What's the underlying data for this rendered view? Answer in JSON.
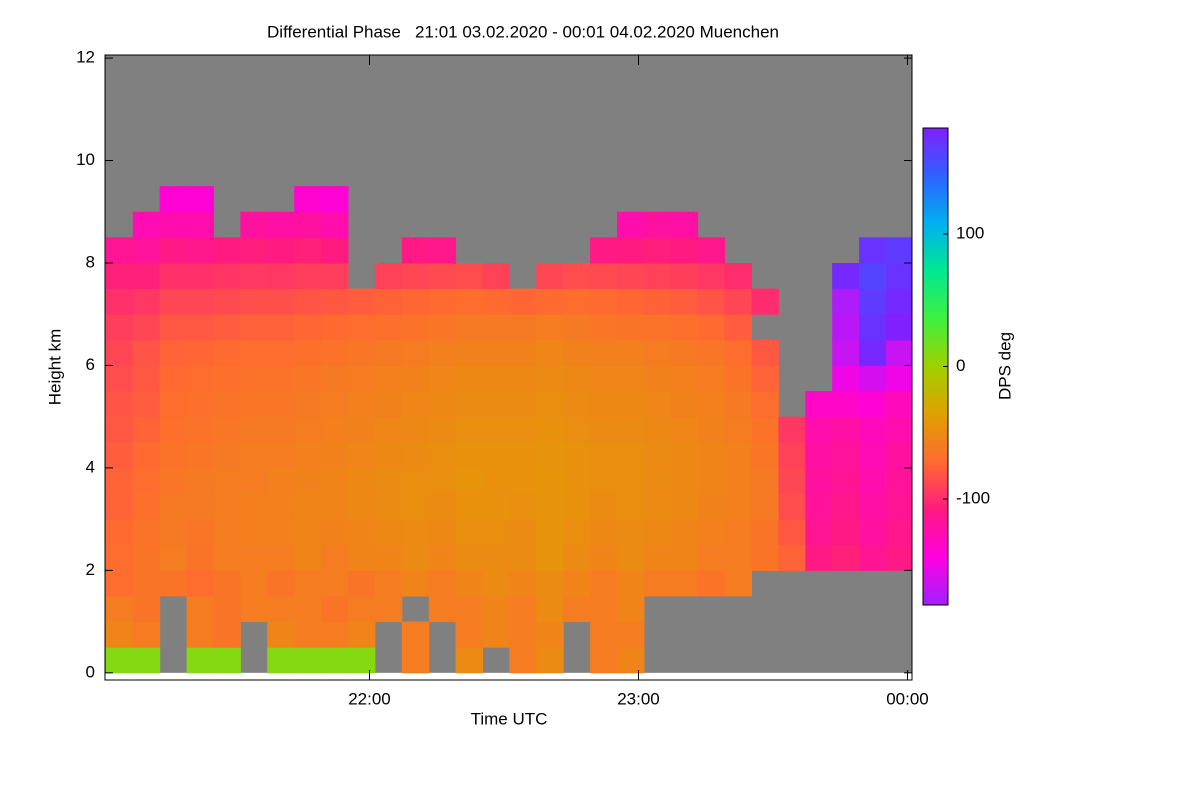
{
  "chart_data": {
    "type": "heatmap",
    "title": "Differential Phase   21:01 03.02.2020 - 00:01 04.02.2020 Muenchen",
    "xlabel": "Time UTC",
    "ylabel": "Height km",
    "colorbar_label": "DPS deg",
    "xlim": [
      21.0167,
      24.0167
    ],
    "xticks": [
      {
        "value": 22,
        "label": "22:00"
      },
      {
        "value": 23,
        "label": "23:00"
      },
      {
        "value": 24,
        "label": "00:00"
      }
    ],
    "ylim": [
      -0.14,
      12.06
    ],
    "yticks": [
      0,
      2,
      4,
      6,
      8,
      10,
      12
    ],
    "zlim": [
      -180,
      180
    ],
    "zticks": [
      -100,
      0,
      100
    ],
    "nodata_color": "#808080",
    "colormap": [
      "#a020ff",
      "#ff00e0",
      "#ff1a80",
      "#ff6a30",
      "#e0a000",
      "#a0d000",
      "#40f040",
      "#00e890",
      "#00b0f0",
      "#3060ff",
      "#8020ff"
    ],
    "x": [
      21.07,
      21.17,
      21.27,
      21.37,
      21.47,
      21.57,
      21.67,
      21.77,
      21.87,
      21.97,
      22.07,
      22.17,
      22.27,
      22.37,
      22.47,
      22.57,
      22.67,
      22.77,
      22.87,
      22.97,
      23.07,
      23.17,
      23.27,
      23.37,
      23.47,
      23.57,
      23.67,
      23.77,
      23.87,
      23.97
    ],
    "y": [
      0.25,
      0.75,
      1.25,
      1.75,
      2.25,
      2.75,
      3.25,
      3.75,
      4.25,
      4.75,
      5.25,
      5.75,
      6.25,
      6.75,
      7.25,
      7.75,
      8.25,
      8.75,
      9.25
    ],
    "z": [
      [
        10,
        10,
        null,
        10,
        10,
        null,
        10,
        10,
        10,
        10,
        null,
        -60,
        null,
        -50,
        null,
        -60,
        -50,
        null,
        -60,
        -55,
        null,
        null,
        null,
        null,
        null,
        null,
        null,
        null,
        null,
        null
      ],
      [
        -55,
        -60,
        null,
        -60,
        -65,
        null,
        -55,
        -60,
        -60,
        -55,
        null,
        -60,
        null,
        -60,
        -55,
        -60,
        -55,
        null,
        -60,
        -60,
        null,
        null,
        null,
        null,
        null,
        null,
        null,
        null,
        null,
        null
      ],
      [
        -60,
        -65,
        null,
        -60,
        -65,
        -60,
        -60,
        -60,
        -65,
        -60,
        -60,
        null,
        -60,
        -60,
        -55,
        -60,
        -50,
        -60,
        -60,
        -55,
        null,
        null,
        null,
        null,
        null,
        null,
        null,
        null,
        null,
        null
      ],
      [
        -70,
        -65,
        -65,
        -70,
        -65,
        -60,
        -65,
        -60,
        -60,
        -65,
        -60,
        -55,
        -60,
        -55,
        -50,
        -55,
        -50,
        -55,
        -60,
        -55,
        -60,
        -60,
        -65,
        -60,
        null,
        null,
        null,
        null,
        null,
        null
      ],
      [
        -70,
        -65,
        -60,
        -65,
        -60,
        -60,
        -60,
        -55,
        -60,
        -55,
        -55,
        -50,
        -55,
        -50,
        -50,
        -50,
        -45,
        -50,
        -55,
        -50,
        -55,
        -55,
        -60,
        -60,
        -65,
        -75,
        -110,
        -105,
        -115,
        -110
      ],
      [
        -72,
        -66,
        -62,
        -64,
        -60,
        -58,
        -58,
        -55,
        -56,
        -55,
        -52,
        -50,
        -52,
        -48,
        -48,
        -50,
        -45,
        -48,
        -52,
        -50,
        -52,
        -55,
        -58,
        -60,
        -65,
        -80,
        -115,
        -110,
        -120,
        -112
      ],
      [
        -75,
        -68,
        -62,
        -62,
        -60,
        -58,
        -58,
        -55,
        -55,
        -52,
        -50,
        -48,
        -50,
        -46,
        -46,
        -48,
        -45,
        -46,
        -50,
        -48,
        -50,
        -52,
        -56,
        -58,
        -62,
        -85,
        -118,
        -112,
        -122,
        -115
      ],
      [
        -75,
        -70,
        -64,
        -62,
        -60,
        -60,
        -58,
        -56,
        -55,
        -52,
        -50,
        -48,
        -48,
        -45,
        -46,
        -46,
        -44,
        -46,
        -48,
        -48,
        -50,
        -52,
        -55,
        -58,
        -62,
        -88,
        -120,
        -115,
        -125,
        -118
      ],
      [
        -78,
        -72,
        -66,
        -64,
        -62,
        -60,
        -60,
        -58,
        -56,
        -54,
        -52,
        -50,
        -48,
        -46,
        -46,
        -46,
        -45,
        -46,
        -48,
        -48,
        -50,
        -52,
        -55,
        -58,
        -64,
        -90,
        -122,
        -118,
        -128,
        -120
      ],
      [
        -80,
        -75,
        -68,
        -66,
        -64,
        -62,
        -62,
        -60,
        -58,
        -56,
        -54,
        -52,
        -50,
        -48,
        -48,
        -48,
        -46,
        -48,
        -50,
        -50,
        -52,
        -54,
        -56,
        -60,
        -66,
        -95,
        -125,
        -122,
        -130,
        -125
      ],
      [
        -82,
        -78,
        -70,
        -68,
        -66,
        -64,
        -64,
        -62,
        -60,
        -58,
        -56,
        -54,
        -52,
        -50,
        -50,
        -50,
        -48,
        -50,
        -52,
        -52,
        -54,
        -56,
        -58,
        -62,
        -70,
        null,
        -135,
        -135,
        -140,
        -130
      ],
      [
        -85,
        -80,
        -72,
        -70,
        -68,
        -66,
        -66,
        -64,
        -62,
        -60,
        -58,
        -56,
        -54,
        -52,
        -52,
        -52,
        -50,
        -52,
        -54,
        -54,
        -56,
        -58,
        -60,
        -65,
        -75,
        null,
        null,
        -150,
        -160,
        -150
      ],
      [
        -88,
        -82,
        -75,
        -74,
        -72,
        -70,
        -70,
        -68,
        -66,
        -64,
        -62,
        -60,
        -58,
        -56,
        -56,
        -56,
        -54,
        -56,
        -58,
        -58,
        -60,
        -62,
        -64,
        -70,
        -80,
        null,
        null,
        -165,
        175,
        -165
      ],
      [
        -92,
        -88,
        -80,
        -80,
        -78,
        -76,
        -76,
        -74,
        -72,
        -70,
        -68,
        -66,
        -64,
        -62,
        -62,
        -62,
        -60,
        -62,
        -64,
        -65,
        -66,
        -68,
        -72,
        -78,
        null,
        null,
        null,
        -170,
        170,
        180
      ],
      [
        -98,
        -95,
        -88,
        -88,
        -86,
        -84,
        -84,
        -82,
        -80,
        -78,
        -76,
        -74,
        -72,
        -70,
        -72,
        -74,
        -72,
        -70,
        -72,
        -74,
        -76,
        -78,
        -82,
        -88,
        -100,
        null,
        null,
        -175,
        165,
        175
      ],
      [
        -105,
        -105,
        -98,
        -98,
        -96,
        -94,
        -95,
        -92,
        -92,
        null,
        -90,
        -88,
        -86,
        -85,
        -90,
        null,
        -88,
        -85,
        -86,
        -88,
        -90,
        -92,
        -95,
        -100,
        null,
        null,
        null,
        175,
        160,
        170
      ],
      [
        -115,
        -118,
        -110,
        -112,
        -108,
        -106,
        -108,
        -105,
        -108,
        null,
        null,
        -110,
        -112,
        null,
        null,
        null,
        null,
        null,
        -110,
        -108,
        -106,
        -108,
        -112,
        null,
        null,
        null,
        null,
        null,
        170,
        165
      ],
      [
        null,
        -128,
        -125,
        -125,
        null,
        -120,
        -122,
        -120,
        -125,
        null,
        null,
        null,
        null,
        null,
        null,
        null,
        null,
        null,
        null,
        -125,
        -120,
        -122,
        null,
        null,
        null,
        null,
        null,
        null,
        null,
        null
      ],
      [
        null,
        null,
        -140,
        -140,
        null,
        null,
        null,
        -138,
        -140,
        null,
        null,
        null,
        null,
        null,
        null,
        null,
        null,
        null,
        null,
        null,
        null,
        null,
        null,
        null,
        null,
        null,
        null,
        null,
        null,
        null
      ]
    ]
  }
}
